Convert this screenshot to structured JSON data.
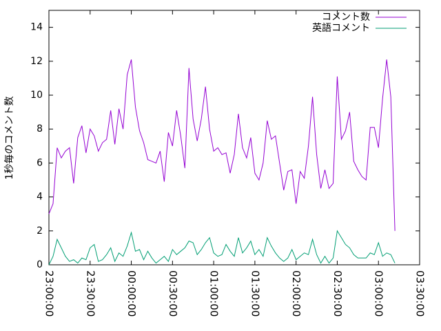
{
  "chart_data": {
    "type": "line",
    "ylabel": "1秒毎のコメント数",
    "x": [
      "23:00:00",
      "23:03:00",
      "23:06:00",
      "23:09:00",
      "23:12:00",
      "23:15:00",
      "23:18:00",
      "23:21:00",
      "23:24:00",
      "23:27:00",
      "23:30:00",
      "23:33:00",
      "23:36:00",
      "23:39:00",
      "23:42:00",
      "23:45:00",
      "23:48:00",
      "23:51:00",
      "23:54:00",
      "23:57:00",
      "00:00:00",
      "00:03:00",
      "00:06:00",
      "00:09:00",
      "00:12:00",
      "00:15:00",
      "00:18:00",
      "00:21:00",
      "00:24:00",
      "00:27:00",
      "00:30:00",
      "00:33:00",
      "00:36:00",
      "00:39:00",
      "00:42:00",
      "00:45:00",
      "00:48:00",
      "00:51:00",
      "00:54:00",
      "00:57:00",
      "01:00:00",
      "01:03:00",
      "01:06:00",
      "01:09:00",
      "01:12:00",
      "01:15:00",
      "01:18:00",
      "01:21:00",
      "01:24:00",
      "01:27:00",
      "01:30:00",
      "01:33:00",
      "01:36:00",
      "01:39:00",
      "01:42:00",
      "01:45:00",
      "01:48:00",
      "01:51:00",
      "01:54:00",
      "01:57:00",
      "02:00:00",
      "02:03:00",
      "02:06:00",
      "02:09:00",
      "02:12:00",
      "02:15:00",
      "02:18:00",
      "02:21:00",
      "02:24:00",
      "02:27:00",
      "02:30:00",
      "02:33:00",
      "02:36:00",
      "02:39:00",
      "02:42:00",
      "02:45:00",
      "02:48:00",
      "02:51:00",
      "02:54:00",
      "02:57:00",
      "03:00:00",
      "03:03:00",
      "03:06:00",
      "03:09:00",
      "03:12:00"
    ],
    "series": [
      {
        "name": "コメント数",
        "color": "#9400d3",
        "values": [
          3.0,
          3.6,
          6.9,
          6.3,
          6.7,
          6.9,
          4.8,
          7.5,
          8.2,
          6.6,
          8.0,
          7.6,
          6.7,
          7.2,
          7.4,
          9.1,
          7.1,
          9.2,
          8.0,
          11.2,
          12.1,
          9.3,
          7.9,
          7.2,
          6.2,
          6.1,
          6.0,
          6.7,
          4.9,
          7.8,
          7.0,
          9.1,
          7.6,
          5.7,
          11.6,
          8.6,
          7.3,
          8.6,
          10.5,
          8.0,
          6.7,
          6.9,
          6.5,
          6.6,
          5.4,
          6.5,
          8.9,
          6.9,
          6.3,
          7.5,
          5.4,
          5.0,
          6.0,
          8.5,
          7.4,
          7.6,
          6.0,
          4.4,
          5.5,
          5.6,
          3.6,
          5.5,
          5.1,
          7.0,
          9.9,
          6.5,
          4.5,
          5.6,
          4.5,
          4.8,
          11.1,
          7.4,
          7.9,
          9.0,
          6.1,
          5.6,
          5.2,
          5.0,
          8.1,
          8.1,
          6.9,
          9.8,
          12.1,
          9.9,
          2.0
        ]
      },
      {
        "name": "英語コメント",
        "color": "#009e73",
        "values": [
          0,
          0.5,
          1.5,
          1.0,
          0.5,
          0.2,
          0.3,
          0.1,
          0.4,
          0.3,
          1.0,
          1.2,
          0.2,
          0.3,
          0.6,
          1.0,
          0.2,
          0.7,
          0.5,
          1.1,
          1.9,
          0.8,
          0.9,
          0.3,
          0.8,
          0.4,
          0.1,
          0.3,
          0.5,
          0.2,
          0.9,
          0.6,
          0.8,
          1.0,
          1.4,
          1.3,
          0.6,
          0.9,
          1.3,
          1.6,
          0.7,
          0.5,
          0.6,
          1.2,
          0.8,
          0.5,
          1.6,
          0.7,
          1.0,
          1.4,
          0.6,
          0.9,
          0.5,
          1.6,
          1.1,
          0.7,
          0.4,
          0.2,
          0.4,
          0.9,
          0.3,
          0.5,
          0.7,
          0.6,
          1.5,
          0.6,
          0.1,
          0.5,
          0.1,
          0.4,
          2.0,
          1.6,
          1.2,
          1.0,
          0.6,
          0.4,
          0.4,
          0.4,
          0.7,
          0.6,
          1.3,
          0.5,
          0.7,
          0.6,
          0.1
        ]
      }
    ],
    "xlim": [
      "23:00:00",
      "03:30:00"
    ],
    "xticks": [
      "23:00:00",
      "23:30:00",
      "00:00:00",
      "00:30:00",
      "01:00:00",
      "01:30:00",
      "02:00:00",
      "02:30:00",
      "03:00:00",
      "03:30:00"
    ],
    "ylim": [
      0,
      15
    ],
    "yticks": [
      0,
      2,
      4,
      6,
      8,
      10,
      12,
      14
    ],
    "legend": "top-right"
  }
}
